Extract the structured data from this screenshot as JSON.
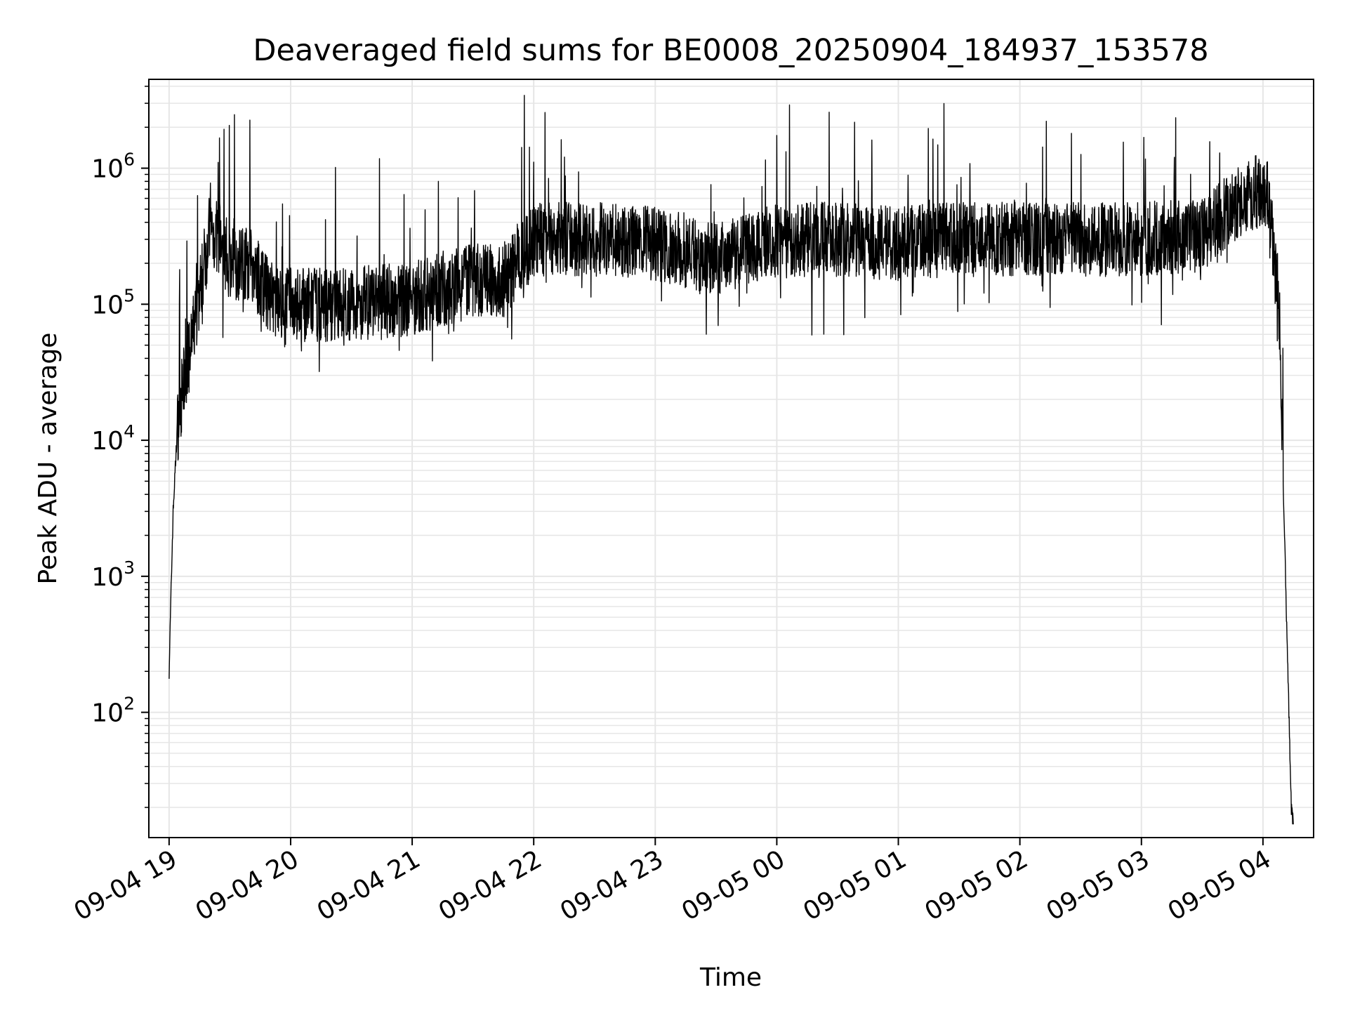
{
  "chart_data": {
    "type": "line",
    "title": "Deaveraged field sums for BE0008_20250904_184937_153578",
    "xlabel": "Time",
    "ylabel": "Peak ADU - average",
    "y_scale": "log",
    "ylim": [
      12,
      4500000
    ],
    "xlim": [
      "2025-09-04 18:50",
      "2025-09-05 04:25"
    ],
    "grid": true,
    "line_color": "#000000",
    "grid_color": "#e6e6e6",
    "x_ticks": [
      {
        "value": "2025-09-04 19:00",
        "label": "09-04 19"
      },
      {
        "value": "2025-09-04 20:00",
        "label": "09-04 20"
      },
      {
        "value": "2025-09-04 21:00",
        "label": "09-04 21"
      },
      {
        "value": "2025-09-04 22:00",
        "label": "09-04 22"
      },
      {
        "value": "2025-09-04 23:00",
        "label": "09-04 23"
      },
      {
        "value": "2025-09-05 00:00",
        "label": "09-05 00"
      },
      {
        "value": "2025-09-05 01:00",
        "label": "09-05 01"
      },
      {
        "value": "2025-09-05 02:00",
        "label": "09-05 02"
      },
      {
        "value": "2025-09-05 03:00",
        "label": "09-05 03"
      },
      {
        "value": "2025-09-05 04:00",
        "label": "09-05 04"
      }
    ],
    "y_ticks": [
      {
        "value": 100,
        "base": "10",
        "exp": "2"
      },
      {
        "value": 1000,
        "base": "10",
        "exp": "3"
      },
      {
        "value": 10000,
        "base": "10",
        "exp": "4"
      },
      {
        "value": 100000,
        "base": "10",
        "exp": "5"
      },
      {
        "value": 1000000,
        "base": "10",
        "exp": "6"
      }
    ],
    "series": [
      {
        "values_description_only_in_script": false,
        "x": [
          "2025-09-04 19:00",
          "2025-09-04 19:01",
          "2025-09-04 19:02",
          "2025-09-04 19:04",
          "2025-09-04 19:06",
          "2025-09-04 19:08",
          "2025-09-04 19:10",
          "2025-09-04 19:13",
          "2025-09-04 19:16",
          "2025-09-04 19:20",
          "2025-09-04 19:25",
          "2025-09-04 19:30",
          "2025-09-04 19:40",
          "2025-09-04 19:50",
          "2025-09-04 20:00",
          "2025-09-04 20:30",
          "2025-09-04 21:00",
          "2025-09-04 21:30",
          "2025-09-04 21:45",
          "2025-09-04 22:00",
          "2025-09-04 22:30",
          "2025-09-04 23:00",
          "2025-09-04 23:30",
          "2025-09-05 00:00",
          "2025-09-05 00:30",
          "2025-09-05 01:00",
          "2025-09-05 01:30",
          "2025-09-05 02:00",
          "2025-09-05 02:30",
          "2025-09-05 03:00",
          "2025-09-05 03:30",
          "2025-09-05 03:50",
          "2025-09-05 04:00",
          "2025-09-05 04:03",
          "2025-09-05 04:06",
          "2025-09-05 04:08",
          "2025-09-05 04:10",
          "2025-09-05 04:12",
          "2025-09-05 04:14",
          "2025-09-05 04:15"
        ],
        "y": [
          200,
          800,
          3000,
          12000,
          20000,
          30000,
          40000,
          80000,
          150000,
          350000,
          300000,
          200000,
          200000,
          110000,
          100000,
          100000,
          110000,
          150000,
          150000,
          300000,
          300000,
          280000,
          220000,
          300000,
          300000,
          280000,
          300000,
          300000,
          300000,
          300000,
          320000,
          600000,
          700000,
          600000,
          180000,
          100000,
          5000,
          300,
          20,
          15
        ]
      }
    ]
  }
}
